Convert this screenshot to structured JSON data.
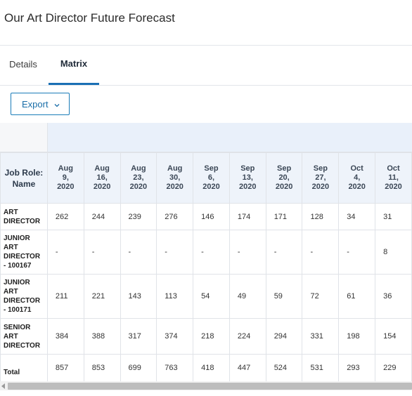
{
  "page": {
    "title": "Our Art Director Future Forecast"
  },
  "tabs": [
    {
      "label": "Details",
      "active": false
    },
    {
      "label": "Matrix",
      "active": true
    }
  ],
  "toolbar": {
    "export_label": "Export",
    "export_icon": "chevron-down-icon"
  },
  "colors": {
    "accent": "#1a6fb4",
    "header_band": "#e9f0fa"
  },
  "matrix": {
    "row_header_label": "Job Role: Name",
    "columns": [
      [
        "Aug",
        "9,",
        "2020"
      ],
      [
        "Aug",
        "16,",
        "2020"
      ],
      [
        "Aug",
        "23,",
        "2020"
      ],
      [
        "Aug",
        "30,",
        "2020"
      ],
      [
        "Sep",
        "6,",
        "2020"
      ],
      [
        "Sep",
        "13,",
        "2020"
      ],
      [
        "Sep",
        "20,",
        "2020"
      ],
      [
        "Sep",
        "27,",
        "2020"
      ],
      [
        "Oct",
        "4,",
        "2020"
      ],
      [
        "Oct",
        "11,",
        "2020"
      ]
    ],
    "rows": [
      {
        "label": [
          "ART",
          "DIRECTOR"
        ],
        "values": [
          "262",
          "244",
          "239",
          "276",
          "146",
          "174",
          "171",
          "128",
          "34",
          "31"
        ]
      },
      {
        "label": [
          "JUNIOR",
          "ART",
          "DIRECTOR",
          "- 100167"
        ],
        "values": [
          "-",
          "-",
          "-",
          "-",
          "-",
          "-",
          "-",
          "-",
          "-",
          "8"
        ]
      },
      {
        "label": [
          "JUNIOR",
          "ART",
          "DIRECTOR",
          "- 100171"
        ],
        "values": [
          "211",
          "221",
          "143",
          "113",
          "54",
          "49",
          "59",
          "72",
          "61",
          "36"
        ]
      },
      {
        "label": [
          "SENIOR",
          "ART",
          "DIRECTOR"
        ],
        "values": [
          "384",
          "388",
          "317",
          "374",
          "218",
          "224",
          "294",
          "331",
          "198",
          "154"
        ]
      },
      {
        "label": [
          "Total"
        ],
        "values": [
          "857",
          "853",
          "699",
          "763",
          "418",
          "447",
          "524",
          "531",
          "293",
          "229"
        ]
      }
    ]
  }
}
